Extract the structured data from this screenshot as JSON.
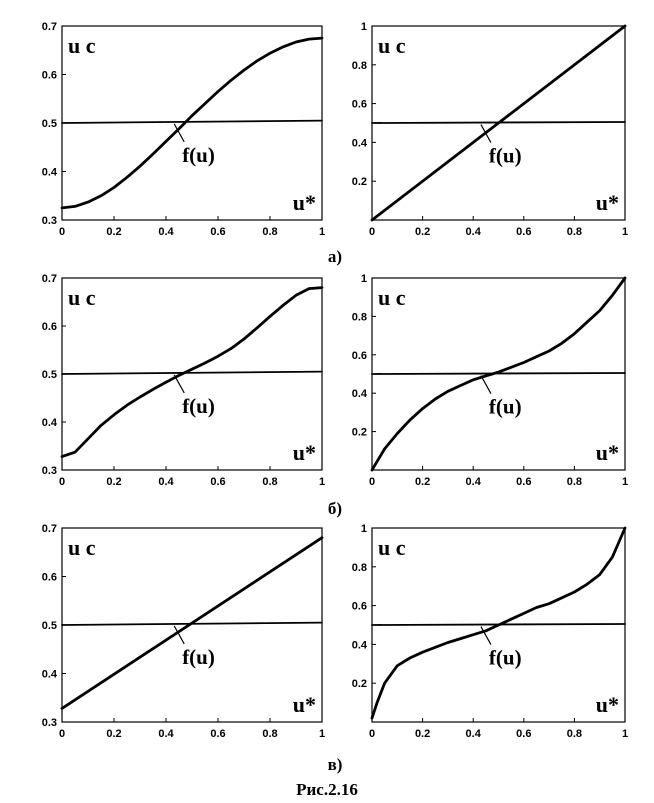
{
  "caption": "Рис.2.16",
  "rows": [
    {
      "label": "а)"
    },
    {
      "label": "б)"
    },
    {
      "label": "в)"
    }
  ],
  "chart_data": [
    {
      "type": "line",
      "row": 0,
      "col": 0,
      "ylabel": "u c",
      "xlabel": "u*",
      "annotation": "f(u)",
      "xlim": [
        0,
        1
      ],
      "ylim": [
        0.3,
        0.7
      ],
      "xticks": [
        "0",
        "0.2",
        "0.4",
        "0.6",
        "0.8",
        "1"
      ],
      "yticks": [
        "0.3",
        "0.4",
        "0.5",
        "0.6",
        "0.7"
      ],
      "series": [
        {
          "x": [
            0,
            0.05,
            0.1,
            0.15,
            0.2,
            0.25,
            0.3,
            0.35,
            0.4,
            0.45,
            0.5,
            0.55,
            0.6,
            0.65,
            0.7,
            0.75,
            0.8,
            0.85,
            0.9,
            0.95,
            1.0
          ],
          "y": [
            0.325,
            0.328,
            0.337,
            0.35,
            0.367,
            0.388,
            0.411,
            0.436,
            0.462,
            0.488,
            0.515,
            0.54,
            0.565,
            0.588,
            0.609,
            0.628,
            0.644,
            0.657,
            0.667,
            0.673,
            0.675
          ]
        },
        {
          "x": [
            0,
            1
          ],
          "y": [
            0.5,
            0.505
          ]
        }
      ]
    },
    {
      "type": "line",
      "row": 0,
      "col": 1,
      "ylabel": "u c",
      "xlabel": "u*",
      "annotation": "f(u)",
      "xlim": [
        0,
        1
      ],
      "ylim": [
        0,
        1
      ],
      "xticks": [
        "0",
        "0.2",
        "0.4",
        "0.6",
        "0.8",
        "1"
      ],
      "yticks": [
        "0.2",
        "0.4",
        "0.6",
        "0.8",
        "1"
      ],
      "series": [
        {
          "x": [
            0,
            1
          ],
          "y": [
            0,
            1
          ]
        },
        {
          "x": [
            0,
            1
          ],
          "y": [
            0.5,
            0.505
          ]
        }
      ]
    },
    {
      "type": "line",
      "row": 1,
      "col": 0,
      "ylabel": "u c",
      "xlabel": "u*",
      "annotation": "f(u)",
      "xlim": [
        0,
        1
      ],
      "ylim": [
        0.3,
        0.7
      ],
      "xticks": [
        "0",
        "0.2",
        "0.4",
        "0.6",
        "0.8",
        "1"
      ],
      "yticks": [
        "0.3",
        "0.4",
        "0.5",
        "0.6",
        "0.7"
      ],
      "series": [
        {
          "x": [
            0,
            0.05,
            0.1,
            0.15,
            0.2,
            0.25,
            0.3,
            0.35,
            0.4,
            0.45,
            0.5,
            0.55,
            0.6,
            0.65,
            0.7,
            0.75,
            0.8,
            0.85,
            0.9,
            0.95,
            1.0
          ],
          "y": [
            0.328,
            0.337,
            0.365,
            0.393,
            0.415,
            0.435,
            0.452,
            0.468,
            0.483,
            0.497,
            0.51,
            0.523,
            0.537,
            0.553,
            0.573,
            0.596,
            0.62,
            0.643,
            0.664,
            0.678,
            0.68
          ]
        },
        {
          "x": [
            0,
            1
          ],
          "y": [
            0.5,
            0.505
          ]
        }
      ]
    },
    {
      "type": "line",
      "row": 1,
      "col": 1,
      "ylabel": "u c",
      "xlabel": "u*",
      "annotation": "f(u)",
      "xlim": [
        0,
        1
      ],
      "ylim": [
        0,
        1
      ],
      "xticks": [
        "0",
        "0.2",
        "0.4",
        "0.6",
        "0.8",
        "1"
      ],
      "yticks": [
        "0.2",
        "0.4",
        "0.6",
        "0.8",
        "1"
      ],
      "series": [
        {
          "x": [
            0,
            0.05,
            0.1,
            0.15,
            0.2,
            0.25,
            0.3,
            0.35,
            0.4,
            0.45,
            0.5,
            0.55,
            0.6,
            0.65,
            0.7,
            0.75,
            0.8,
            0.85,
            0.9,
            0.95,
            1.0
          ],
          "y": [
            0,
            0.11,
            0.19,
            0.26,
            0.32,
            0.37,
            0.41,
            0.44,
            0.47,
            0.49,
            0.51,
            0.535,
            0.56,
            0.59,
            0.62,
            0.66,
            0.71,
            0.77,
            0.83,
            0.91,
            1.0
          ]
        },
        {
          "x": [
            0,
            1
          ],
          "y": [
            0.5,
            0.505
          ]
        }
      ]
    },
    {
      "type": "line",
      "row": 2,
      "col": 0,
      "ylabel": "u c",
      "xlabel": "u*",
      "annotation": "f(u)",
      "xlim": [
        0,
        1
      ],
      "ylim": [
        0.3,
        0.7
      ],
      "xticks": [
        "0",
        "0.2",
        "0.4",
        "0.6",
        "0.8",
        "1"
      ],
      "yticks": [
        "0.3",
        "0.4",
        "0.5",
        "0.6",
        "0.7"
      ],
      "series": [
        {
          "x": [
            0,
            1
          ],
          "y": [
            0.328,
            0.68
          ]
        },
        {
          "x": [
            0,
            1
          ],
          "y": [
            0.5,
            0.505
          ]
        }
      ]
    },
    {
      "type": "line",
      "row": 2,
      "col": 1,
      "ylabel": "u c",
      "xlabel": "u*",
      "annotation": "f(u)",
      "xlim": [
        0,
        1
      ],
      "ylim": [
        0,
        1
      ],
      "xticks": [
        "0",
        "0.2",
        "0.4",
        "0.6",
        "0.8",
        "1"
      ],
      "yticks": [
        "0.2",
        "0.4",
        "0.6",
        "0.8",
        "1"
      ],
      "series": [
        {
          "x": [
            0,
            0.02,
            0.05,
            0.1,
            0.15,
            0.2,
            0.25,
            0.3,
            0.35,
            0.4,
            0.45,
            0.5,
            0.55,
            0.6,
            0.65,
            0.7,
            0.75,
            0.8,
            0.85,
            0.9,
            0.95,
            1.0
          ],
          "y": [
            0.02,
            0.1,
            0.2,
            0.29,
            0.33,
            0.36,
            0.385,
            0.41,
            0.43,
            0.45,
            0.47,
            0.5,
            0.53,
            0.56,
            0.59,
            0.61,
            0.64,
            0.67,
            0.71,
            0.76,
            0.85,
            1.0
          ]
        },
        {
          "x": [
            0,
            1
          ],
          "y": [
            0.5,
            0.505
          ]
        }
      ]
    }
  ]
}
